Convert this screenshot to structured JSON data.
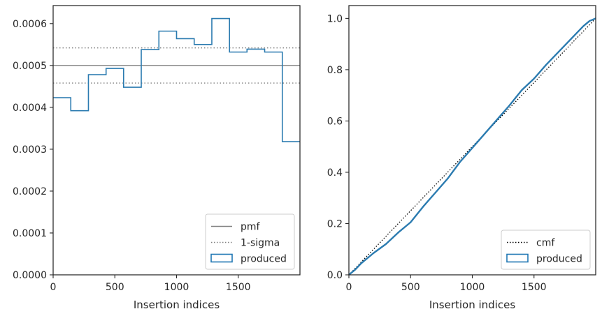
{
  "chart_data": [
    {
      "type": "histogram-step",
      "xlabel": "Insertion indices",
      "ylabel": "",
      "xlim": [
        0,
        2000
      ],
      "ylim": [
        0,
        0.000643
      ],
      "xticks": [
        0,
        500,
        1000,
        1500
      ],
      "xtick_labels": [
        "0",
        "500",
        "1000",
        "1500"
      ],
      "yticks": [
        0,
        0.0001,
        0.0002,
        0.0003,
        0.0004,
        0.0005,
        0.0006
      ],
      "ytick_labels": [
        "0.0000",
        "0.0001",
        "0.0002",
        "0.0003",
        "0.0004",
        "0.0005",
        "0.0006"
      ],
      "bin_edges": [
        0,
        143,
        286,
        429,
        571,
        714,
        857,
        1000,
        1143,
        1286,
        1429,
        1571,
        1714,
        1857,
        2000
      ],
      "values": [
        0.000423,
        0.000392,
        0.000478,
        0.000493,
        0.000448,
        0.000538,
        0.000582,
        0.000564,
        0.00055,
        0.000612,
        0.000532,
        0.000539,
        0.000532,
        0.000318
      ],
      "pmf": 0.0005,
      "sigma_band": [
        0.000458,
        0.000542
      ],
      "legend": {
        "placement": "lower-right",
        "entries": [
          {
            "label": "pmf",
            "style": "solid",
            "color": "#808080"
          },
          {
            "label": "1-sigma",
            "style": "dotted",
            "color": "#808080"
          },
          {
            "label": "produced",
            "style": "box",
            "color": "#1f77b4"
          }
        ]
      }
    },
    {
      "type": "line",
      "xlabel": "Insertion indices",
      "ylabel": "",
      "xlim": [
        0,
        2000
      ],
      "ylim": [
        0,
        1.05
      ],
      "xticks": [
        0,
        500,
        1000,
        1500
      ],
      "xtick_labels": [
        "0",
        "500",
        "1000",
        "1500"
      ],
      "yticks": [
        0,
        0.2,
        0.4,
        0.6,
        0.8,
        1.0
      ],
      "ytick_labels": [
        "0.0",
        "0.2",
        "0.4",
        "0.6",
        "0.8",
        "1.0"
      ],
      "reference_cmf": {
        "x": [
          0,
          2000
        ],
        "y": [
          0,
          1.0
        ]
      },
      "produced": {
        "x": [
          0,
          50,
          100,
          200,
          300,
          400,
          500,
          600,
          700,
          800,
          900,
          1000,
          1100,
          1200,
          1300,
          1400,
          1500,
          1600,
          1700,
          1800,
          1900,
          1950,
          2000
        ],
        "y": [
          0,
          0.02,
          0.045,
          0.085,
          0.12,
          0.165,
          0.205,
          0.265,
          0.32,
          0.375,
          0.44,
          0.495,
          0.55,
          0.605,
          0.66,
          0.72,
          0.765,
          0.82,
          0.87,
          0.92,
          0.97,
          0.99,
          1.0
        ]
      },
      "legend": {
        "placement": "lower-right",
        "entries": [
          {
            "label": "cmf",
            "style": "dotted",
            "color": "#000000"
          },
          {
            "label": "produced",
            "style": "box",
            "color": "#1f77b4"
          }
        ]
      }
    }
  ]
}
